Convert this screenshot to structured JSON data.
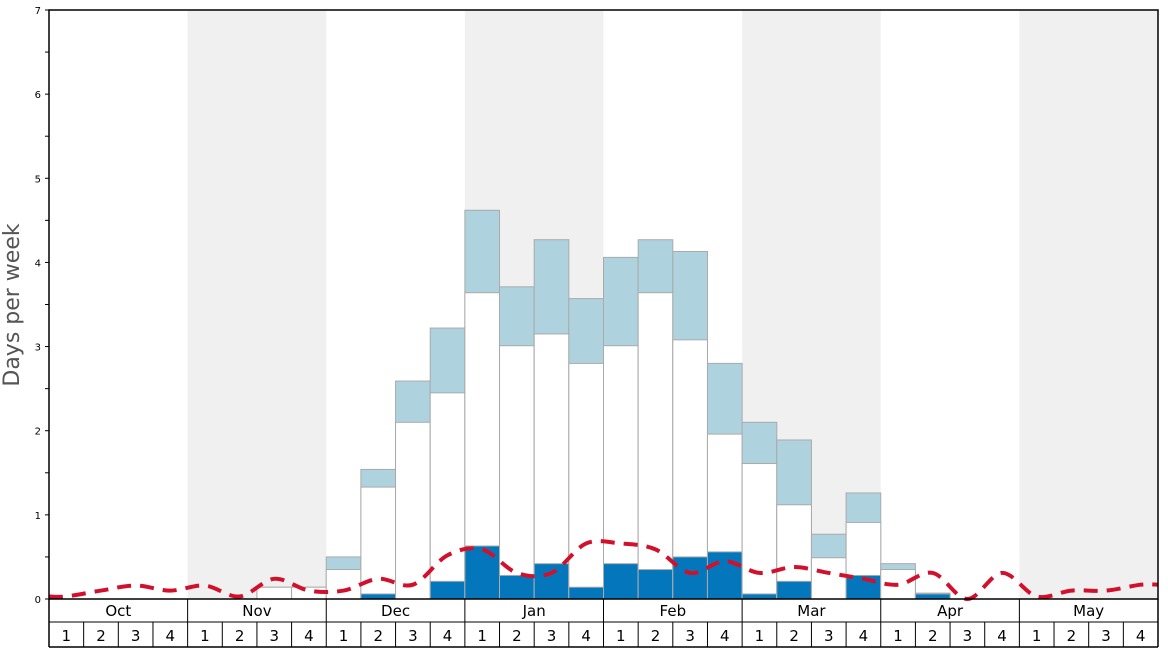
{
  "chart_data": {
    "type": "bar",
    "ylabel": "Days per week",
    "ylim": [
      0,
      7
    ],
    "yticks": [
      0,
      1,
      2,
      3,
      4,
      5,
      6,
      7
    ],
    "months": [
      "Oct",
      "Nov",
      "Dec",
      "Jan",
      "Feb",
      "Mar",
      "Apr",
      "May"
    ],
    "week_labels": [
      "1",
      "2",
      "3",
      "4"
    ],
    "alternating_shading": true,
    "colors": {
      "light": "#aed3df",
      "mid": "#ffffff",
      "dark": "#0476bb",
      "dashed_line": "#d3102b",
      "shade": "#f0f0f0"
    },
    "series": [
      {
        "values": [
          0,
          0,
          0,
          0,
          0,
          0,
          0,
          0,
          0,
          0.06,
          0,
          0.21,
          0.63,
          0.28,
          0.42,
          0.14,
          0.42,
          0.35,
          0.5,
          0.56,
          0.06,
          0.21,
          0,
          0.28,
          0,
          0.06,
          0,
          0,
          0,
          0,
          0,
          0
        ]
      },
      {
        "values": [
          0,
          0,
          0,
          0,
          0,
          0,
          0.14,
          0.14,
          0.35,
          1.33,
          2.1,
          2.45,
          3.64,
          3.01,
          3.15,
          2.8,
          3.01,
          3.64,
          3.08,
          1.96,
          1.61,
          1.12,
          0.49,
          0.91,
          0.35,
          0,
          0,
          0,
          0,
          0,
          0,
          0
        ]
      },
      {
        "values": [
          0,
          0,
          0,
          0,
          0,
          0,
          0.14,
          0.14,
          0.5,
          1.54,
          2.59,
          3.22,
          4.62,
          3.71,
          4.27,
          3.57,
          4.06,
          4.27,
          4.13,
          2.8,
          2.1,
          1.89,
          0.77,
          1.26,
          0.42,
          0.07,
          0,
          0,
          0,
          0,
          0,
          0
        ]
      },
      {
        "type": "line",
        "values": [
          0.03,
          0.1,
          0.16,
          0.1,
          0.16,
          0.03,
          0.24,
          0.1,
          0.1,
          0.24,
          0.17,
          0.52,
          0.59,
          0.31,
          0.31,
          0.66,
          0.66,
          0.59,
          0.31,
          0.45,
          0.31,
          0.38,
          0.31,
          0.24,
          0.17,
          0.31,
          0,
          0.31,
          0.03,
          0.1,
          0.1,
          0.17
        ]
      }
    ]
  }
}
